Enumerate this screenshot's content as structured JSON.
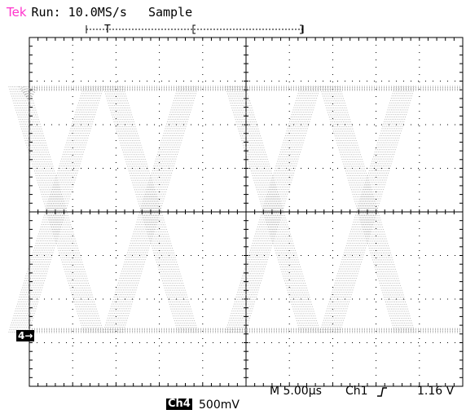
{
  "status": {
    "brand": "Tek",
    "run": "Run: 10.0MS/s",
    "mode": "Sample"
  },
  "trigger_marker": "T",
  "channel_marker": "4→",
  "readout": {
    "timebase": "M 5.00µs",
    "trig_source": "Ch1",
    "trig_slope_icon": "rising-edge-icon",
    "trig_level": "1.16 V"
  },
  "channel": {
    "name": "Ch4",
    "volts_per_div": "500mV"
  },
  "colors": {
    "brand": "#ff33cc",
    "trace": "#808080",
    "grid": "#000000"
  }
}
